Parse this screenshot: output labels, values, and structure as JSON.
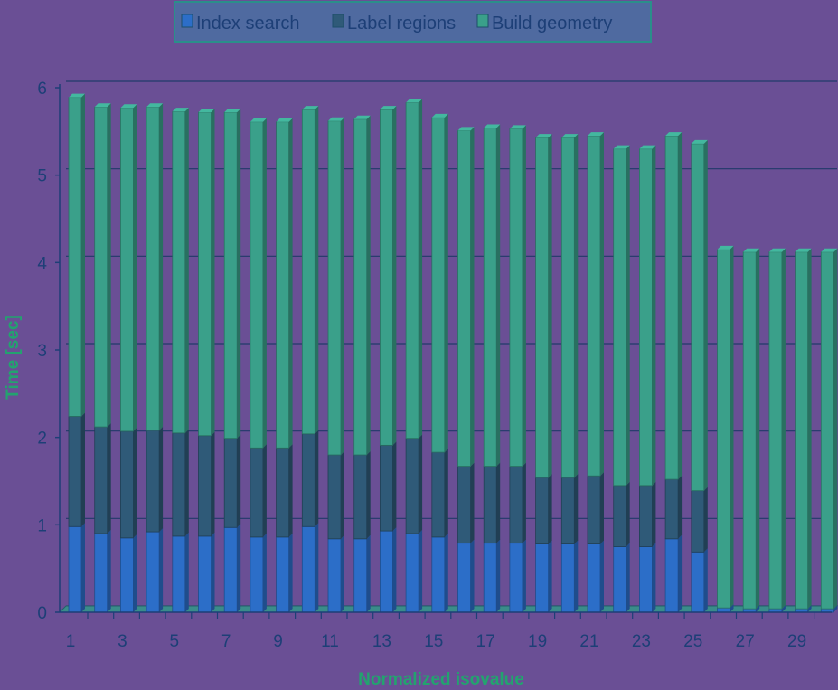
{
  "chart_data": {
    "type": "bar",
    "stacked": true,
    "ylabel": "Time [sec]",
    "xlabel": "Normalized isovalue",
    "ylim": [
      0,
      6
    ],
    "yticks": [
      0,
      1,
      2,
      3,
      4,
      5,
      6
    ],
    "x_tick_labels": [
      "1",
      "3",
      "5",
      "7",
      "9",
      "11",
      "13",
      "15",
      "17",
      "19",
      "21",
      "23",
      "25",
      "27",
      "29"
    ],
    "grid": "horizontal",
    "legend_position": "top-center",
    "categories": [
      1,
      2,
      3,
      4,
      5,
      6,
      7,
      8,
      9,
      10,
      11,
      12,
      13,
      14,
      15,
      16,
      17,
      18,
      19,
      20,
      21,
      22,
      23,
      24,
      25,
      26,
      27,
      28,
      29,
      30
    ],
    "series": [
      {
        "name": "Index search",
        "color": "#2c6ec8",
        "values": [
          0.98,
          0.9,
          0.85,
          0.92,
          0.87,
          0.87,
          0.97,
          0.86,
          0.86,
          0.98,
          0.84,
          0.84,
          0.93,
          0.9,
          0.86,
          0.79,
          0.79,
          0.79,
          0.78,
          0.78,
          0.78,
          0.75,
          0.75,
          0.84,
          0.69,
          0.05,
          0.04,
          0.04,
          0.04,
          0.04
        ]
      },
      {
        "name": "Label regions",
        "color": "#2f5a78",
        "values": [
          1.26,
          1.22,
          1.22,
          1.16,
          1.18,
          1.15,
          1.02,
          1.02,
          1.02,
          1.06,
          0.96,
          0.96,
          0.98,
          1.09,
          0.97,
          0.88,
          0.88,
          0.88,
          0.76,
          0.76,
          0.78,
          0.7,
          0.7,
          0.68,
          0.7,
          0.0,
          0.0,
          0.0,
          0.0,
          0.0
        ]
      },
      {
        "name": "Build geometry",
        "color": "#3aa08a",
        "values": [
          3.65,
          3.66,
          3.7,
          3.7,
          3.68,
          3.7,
          3.73,
          3.73,
          3.73,
          3.71,
          3.82,
          3.84,
          3.84,
          3.84,
          3.83,
          3.84,
          3.87,
          3.86,
          3.89,
          3.89,
          3.89,
          3.85,
          3.85,
          3.93,
          3.97,
          4.1,
          4.08,
          4.08,
          4.08,
          4.08
        ]
      }
    ]
  }
}
